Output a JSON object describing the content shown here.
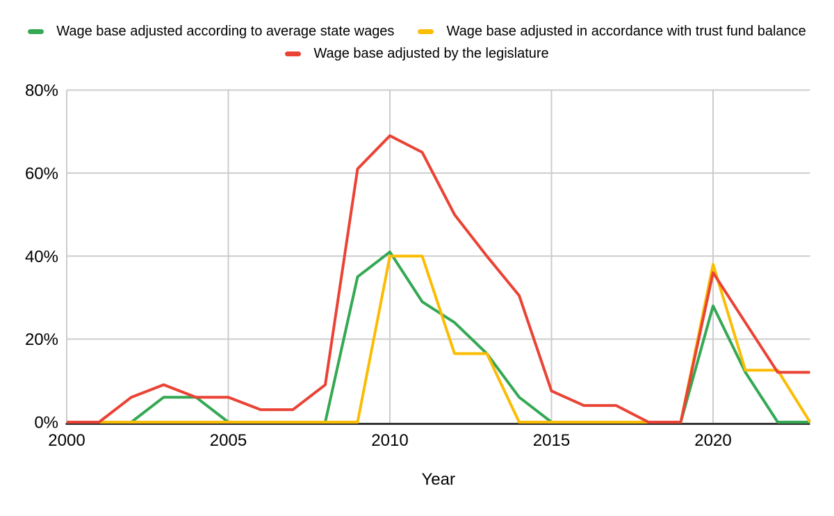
{
  "chart_data": {
    "type": "line",
    "title": "",
    "x_axis_title": "Year",
    "xlabel": "Year",
    "ylabel": "",
    "x": [
      2000,
      2001,
      2002,
      2003,
      2004,
      2005,
      2006,
      2007,
      2008,
      2009,
      2010,
      2011,
      2012,
      2013,
      2014,
      2015,
      2016,
      2017,
      2018,
      2019,
      2020,
      2021,
      2022,
      2023
    ],
    "series": [
      {
        "id": "avg-state-wages",
        "name": "Wage base adjusted according to average state wages",
        "color": "#34a853",
        "values": [
          0,
          0,
          0,
          6,
          6,
          0,
          0,
          0,
          0,
          35,
          41,
          29,
          24,
          16.5,
          6,
          0,
          0,
          0,
          0,
          0,
          28,
          12,
          0,
          0
        ]
      },
      {
        "id": "trust-fund-balance",
        "name": "Wage base adjusted in accordance with trust fund balance",
        "color": "#fbbc04",
        "values": [
          0,
          0,
          0,
          0,
          0,
          0,
          0,
          0,
          0,
          0,
          40,
          40,
          16.5,
          16.5,
          0,
          0,
          0,
          0,
          0,
          0,
          38,
          12.5,
          12.5,
          0
        ]
      },
      {
        "id": "legislature",
        "name": "Wage base adjusted by the legislature",
        "color": "#ea4335",
        "values": [
          0,
          0,
          6,
          9,
          6,
          6,
          3,
          3,
          9,
          61,
          69,
          65,
          50,
          40,
          30.5,
          7.5,
          4,
          4,
          0,
          0,
          36,
          24,
          12,
          12
        ]
      }
    ],
    "xlim": [
      2000,
      2023
    ],
    "ylim": [
      0,
      80
    ],
    "x_ticks": [
      2000,
      2005,
      2010,
      2015,
      2020
    ],
    "y_ticks": [
      0,
      20,
      40,
      60,
      80
    ],
    "y_tick_suffix": "%",
    "grid": true,
    "legend_position": "top",
    "colors": {
      "grid": "#cccccc",
      "axis": "#333333",
      "text": "#000000",
      "background": "#ffffff"
    }
  }
}
